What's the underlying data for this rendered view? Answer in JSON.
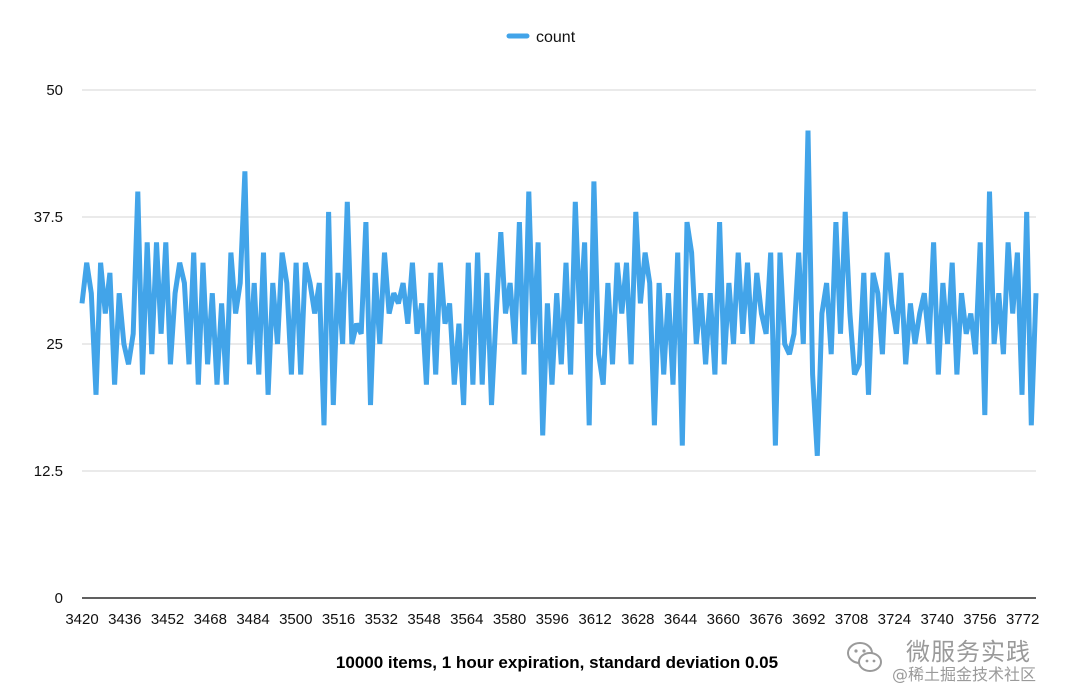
{
  "chart_data": {
    "type": "line",
    "title": "10000 items, 1 hour expiration, standard deviation 0.05",
    "xlabel": "",
    "ylabel": "",
    "legend_position": "top-center",
    "grid": true,
    "ylim": [
      0,
      50
    ],
    "yticks": [
      "0",
      "12.5",
      "25",
      "37.5",
      "50"
    ],
    "x_start": 3420,
    "x_end": 3777,
    "xticks": [
      "3420",
      "3436",
      "3452",
      "3468",
      "3484",
      "3500",
      "3516",
      "3532",
      "3548",
      "3564",
      "3580",
      "3596",
      "3612",
      "3628",
      "3644",
      "3660",
      "3676",
      "3692",
      "3708",
      "3724",
      "3740",
      "3756",
      "3772"
    ],
    "series": [
      {
        "name": "count",
        "color": "#42a4e9",
        "values": [
          29,
          33,
          30,
          20,
          33,
          28,
          32,
          21,
          30,
          25,
          23,
          26,
          40,
          22,
          35,
          24,
          35,
          26,
          35,
          23,
          30,
          33,
          31,
          23,
          34,
          21,
          33,
          23,
          30,
          21,
          29,
          21,
          34,
          28,
          31,
          42,
          23,
          31,
          22,
          34,
          20,
          31,
          25,
          34,
          31,
          22,
          33,
          22,
          33,
          31,
          28,
          31,
          17,
          38,
          19,
          32,
          25,
          39,
          25,
          27,
          26,
          37,
          19,
          32,
          25,
          34,
          28,
          30,
          29,
          31,
          27,
          33,
          26,
          29,
          21,
          32,
          22,
          33,
          27,
          29,
          21,
          27,
          19,
          33,
          21,
          34,
          21,
          32,
          19,
          28,
          36,
          28,
          31,
          25,
          37,
          22,
          40,
          25,
          35,
          16,
          29,
          21,
          30,
          23,
          33,
          22,
          39,
          27,
          35,
          17,
          41,
          24,
          21,
          31,
          23,
          33,
          28,
          33,
          23,
          38,
          29,
          34,
          31,
          17,
          31,
          22,
          30,
          21,
          34,
          15,
          37,
          34,
          25,
          30,
          23,
          30,
          22,
          37,
          23,
          31,
          25,
          34,
          26,
          33,
          25,
          32,
          28,
          26,
          34,
          15,
          34,
          25,
          24,
          26,
          34,
          25,
          46,
          22,
          14,
          28,
          31,
          24,
          37,
          26,
          38,
          28,
          22,
          23,
          32,
          20,
          32,
          30,
          24,
          34,
          29,
          26,
          32,
          23,
          29,
          25,
          28,
          30,
          25,
          35,
          22,
          31,
          25,
          33,
          22,
          30,
          26,
          28,
          24,
          35,
          18,
          40,
          25,
          30,
          24,
          35,
          28,
          34,
          20,
          38,
          17,
          30
        ]
      }
    ]
  },
  "watermark": {
    "icon": "wechat-icon",
    "line1": "微服务实践",
    "line2": "@稀土掘金技术社区"
  }
}
